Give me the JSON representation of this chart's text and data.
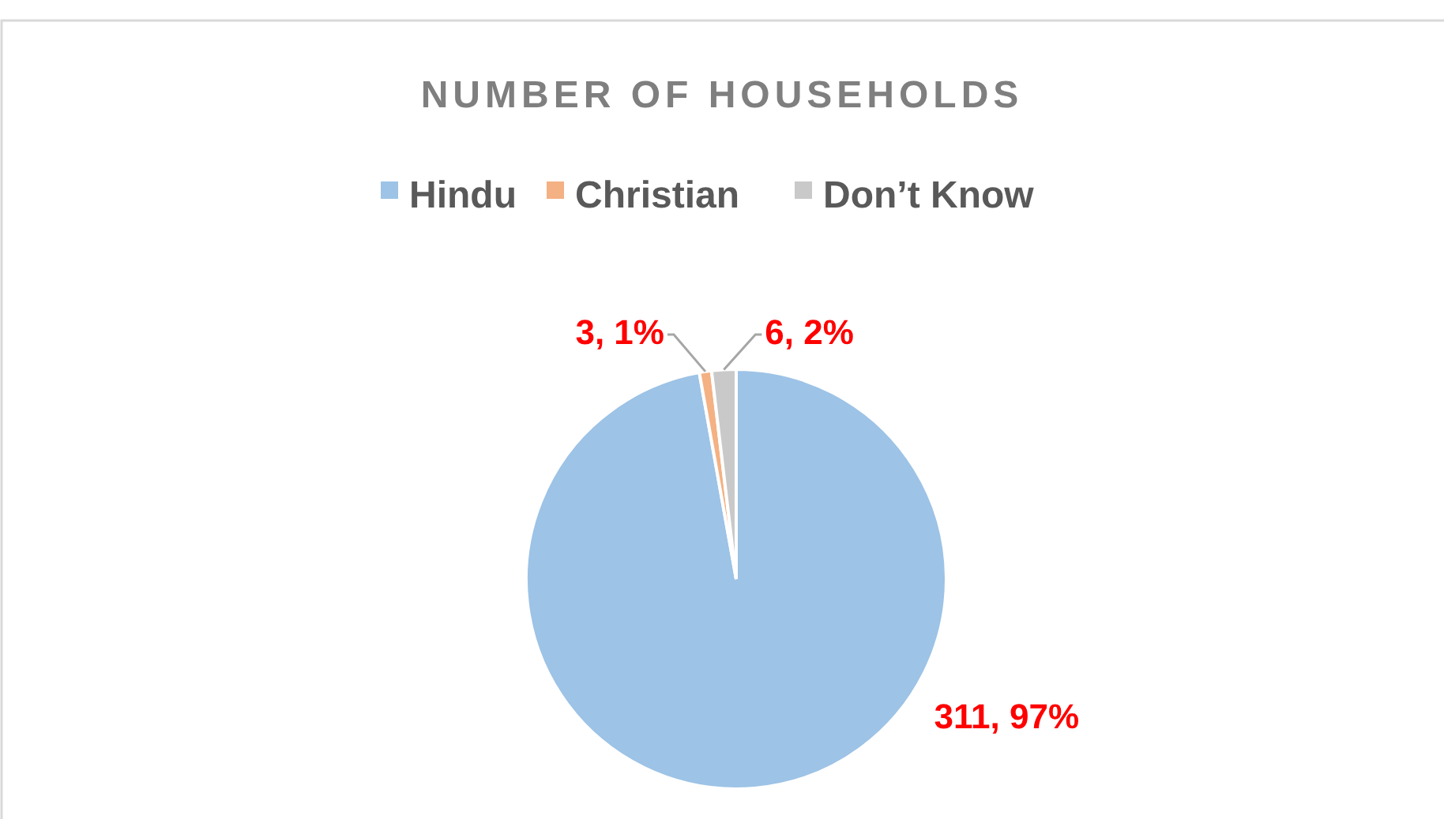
{
  "chart_data": {
    "type": "pie",
    "title": "NUMBER OF HOUSEHOLDS",
    "categories": [
      "Hindu",
      "Christian",
      "Don’t Know"
    ],
    "values": [
      311,
      3,
      6
    ],
    "colors": [
      "#9dc3e6",
      "#f4b183",
      "#c9c9c9"
    ],
    "value_labels": [
      "311, 97%",
      "3, 1%",
      "6, 2%"
    ],
    "legend": "top"
  }
}
